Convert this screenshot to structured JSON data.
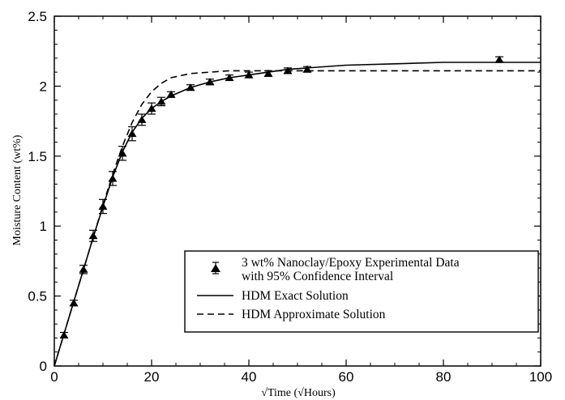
{
  "chart_data": {
    "type": "scatter",
    "xlabel": "√Time (√Hours)",
    "ylabel": "Moisture Content (wt%)",
    "xlim": [
      0,
      100
    ],
    "ylim": [
      0,
      2.5
    ],
    "x_ticks": [
      "0",
      "20",
      "40",
      "60",
      "80",
      "100"
    ],
    "y_ticks": [
      "0",
      "0.5",
      "1",
      "1.5",
      "2",
      "2.5"
    ],
    "grid": false,
    "legend_position": "bottom-right",
    "legend_entries": [
      "3 wt% Nanoclay/Epoxy Experimental Data",
      "with 95% Confidence Interval",
      "HDM Exact Solution",
      "HDM Approximate Solution"
    ],
    "series": [
      {
        "name": "3 wt% Nanoclay/Epoxy Experimental Data with 95% Confidence Interval",
        "style": "triangle-markers-errorbars",
        "x": [
          2,
          4,
          6,
          8,
          10,
          12,
          14,
          16,
          18,
          20,
          22,
          24,
          28,
          32,
          36,
          40,
          44,
          48,
          52,
          91.5
        ],
        "y": [
          0.22,
          0.45,
          0.69,
          0.93,
          1.14,
          1.34,
          1.52,
          1.66,
          1.76,
          1.84,
          1.89,
          1.94,
          1.99,
          2.03,
          2.06,
          2.08,
          2.09,
          2.11,
          2.12,
          2.19
        ],
        "err": [
          0.02,
          0.02,
          0.03,
          0.04,
          0.05,
          0.05,
          0.05,
          0.05,
          0.04,
          0.04,
          0.03,
          0.02,
          0.02,
          0.02,
          0.02,
          0.02,
          0.02,
          0.02,
          0.02,
          0.02
        ]
      },
      {
        "name": "HDM Exact Solution",
        "style": "solid",
        "x": [
          0,
          2,
          4,
          6,
          8,
          10,
          12,
          14,
          16,
          18,
          20,
          22,
          24,
          28,
          32,
          36,
          40,
          44,
          48,
          52,
          60,
          70,
          80,
          100
        ],
        "y": [
          0,
          0.23,
          0.46,
          0.69,
          0.92,
          1.14,
          1.35,
          1.53,
          1.67,
          1.77,
          1.84,
          1.89,
          1.93,
          1.99,
          2.03,
          2.06,
          2.08,
          2.1,
          2.12,
          2.13,
          2.15,
          2.16,
          2.17,
          2.17
        ]
      },
      {
        "name": "HDM Approximate Solution",
        "style": "dashed",
        "x": [
          0,
          2,
          4,
          6,
          8,
          10,
          12,
          14,
          16,
          18,
          20,
          22,
          24,
          28,
          32,
          36,
          40,
          52,
          60,
          100
        ],
        "y": [
          0,
          0.23,
          0.46,
          0.69,
          0.92,
          1.15,
          1.37,
          1.57,
          1.74,
          1.87,
          1.96,
          2.02,
          2.06,
          2.09,
          2.1,
          2.11,
          2.11,
          2.11,
          2.11,
          2.11
        ]
      }
    ]
  }
}
